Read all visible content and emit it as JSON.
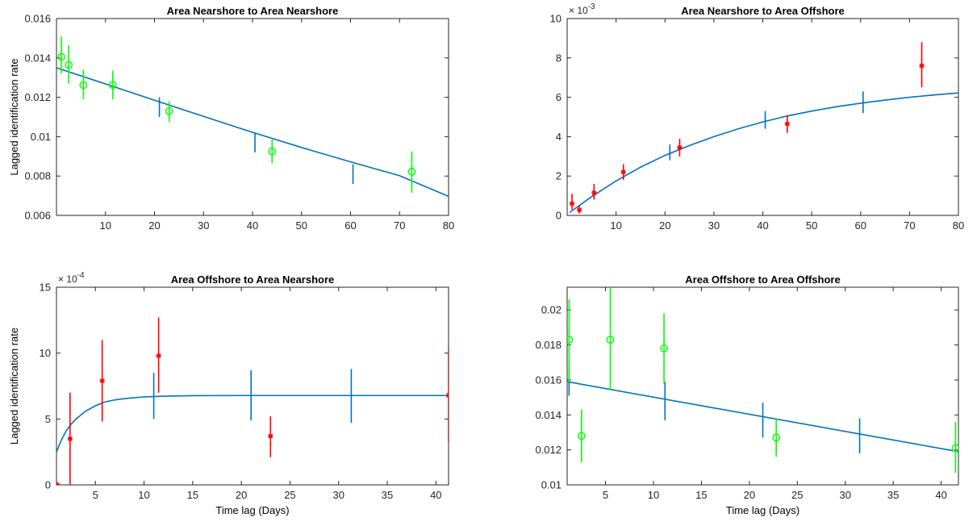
{
  "colors": {
    "fit": "#0072BD",
    "model_error": "#0072BD",
    "green": "#00FF00",
    "red": "#FF0000",
    "axis": "#262626"
  },
  "chart_data": [
    {
      "type": "line",
      "title": "Area Nearshore to Area Nearshore",
      "xlabel": "",
      "ylabel": "Lagged identification rate",
      "xlim": [
        0,
        80
      ],
      "ylim": [
        0.006,
        0.016
      ],
      "grid": false,
      "x_ticks": [
        10,
        20,
        30,
        40,
        50,
        60,
        70,
        80
      ],
      "x_tick_labels": [
        "10",
        "20",
        "30",
        "40",
        "50",
        "60",
        "70",
        "80"
      ],
      "y_ticks": [
        0.006,
        0.008,
        0.01,
        0.012,
        0.014,
        0.016
      ],
      "y_tick_labels": [
        "0.006",
        "0.008",
        "0.01",
        "0.012",
        "0.014",
        "0.016"
      ],
      "y_exponent_label": "",
      "fit_curve": {
        "x": [
          0,
          10,
          20,
          30,
          40,
          50,
          60,
          70,
          80
        ],
        "y": [
          0.0135,
          0.01268,
          0.01185,
          0.01103,
          0.01022,
          0.00945,
          0.00872,
          0.00802,
          0.00697
        ]
      },
      "model_error_bars": [
        {
          "x": 21,
          "low": 0.011,
          "high": 0.012
        },
        {
          "x": 40.5,
          "low": 0.0092,
          "high": 0.0102
        },
        {
          "x": 60.5,
          "low": 0.0076,
          "high": 0.0086
        }
      ],
      "observations": {
        "marker": "circle",
        "color": "#00FF00",
        "points": [
          {
            "x": 1,
            "y": 0.01405,
            "low": 0.0132,
            "high": 0.0151
          },
          {
            "x": 2.5,
            "y": 0.01365,
            "low": 0.0127,
            "high": 0.01465
          },
          {
            "x": 5.5,
            "y": 0.01262,
            "low": 0.0119,
            "high": 0.0134
          },
          {
            "x": 11.5,
            "y": 0.01263,
            "low": 0.0119,
            "high": 0.01335
          },
          {
            "x": 23,
            "y": 0.0113,
            "low": 0.01075,
            "high": 0.0118
          },
          {
            "x": 44,
            "y": 0.00925,
            "low": 0.00865,
            "high": 0.00985
          },
          {
            "x": 72.5,
            "y": 0.00822,
            "low": 0.00715,
            "high": 0.00925
          }
        ]
      }
    },
    {
      "type": "line",
      "title": "Area Nearshore to Area Offshore",
      "xlabel": "",
      "ylabel": "",
      "xlim": [
        0,
        80
      ],
      "ylim": [
        0,
        10
      ],
      "grid": false,
      "x_ticks": [
        10,
        20,
        30,
        40,
        50,
        60,
        70,
        80
      ],
      "x_tick_labels": [
        "10",
        "20",
        "30",
        "40",
        "50",
        "60",
        "70",
        "80"
      ],
      "y_ticks": [
        0,
        2,
        4,
        6,
        8,
        10
      ],
      "y_tick_labels": [
        "0",
        "2",
        "4",
        "6",
        "8",
        "10"
      ],
      "y_exponent_label": "× 10^-3",
      "fit_curve": {
        "x": [
          0.5,
          5,
          10,
          15,
          20,
          25,
          30,
          35,
          40,
          45,
          50,
          55,
          60,
          65,
          70,
          75,
          80
        ],
        "y": [
          0.15,
          0.95,
          1.75,
          2.45,
          3.05,
          3.55,
          4.0,
          4.4,
          4.75,
          5.05,
          5.3,
          5.52,
          5.7,
          5.86,
          6.0,
          6.12,
          6.22
        ]
      },
      "model_error_bars": [
        {
          "x": 21,
          "low": 2.8,
          "high": 3.6
        },
        {
          "x": 40.5,
          "low": 4.4,
          "high": 5.3
        },
        {
          "x": 60.5,
          "low": 5.2,
          "high": 6.3
        }
      ],
      "observations": {
        "marker": "star",
        "color": "#FF0000",
        "points": [
          {
            "x": 1,
            "y": 0.6,
            "low": 0.3,
            "high": 1.1
          },
          {
            "x": 2.5,
            "y": 0.28,
            "low": 0.1,
            "high": 0.5
          },
          {
            "x": 5.5,
            "y": 1.15,
            "low": 0.8,
            "high": 1.6
          },
          {
            "x": 11.5,
            "y": 2.2,
            "low": 1.8,
            "high": 2.6
          },
          {
            "x": 23,
            "y": 3.45,
            "low": 3.0,
            "high": 3.9
          },
          {
            "x": 45,
            "y": 4.65,
            "low": 4.2,
            "high": 5.1
          },
          {
            "x": 72.5,
            "y": 7.6,
            "low": 6.5,
            "high": 8.8
          }
        ]
      }
    },
    {
      "type": "line",
      "title": "Area Offshore to Area Nearshore",
      "xlabel": "Time lag (Days)",
      "ylabel": "Lagged identification rate",
      "xlim": [
        1,
        41.3
      ],
      "ylim": [
        0,
        15
      ],
      "grid": false,
      "x_ticks": [
        5,
        10,
        15,
        20,
        25,
        30,
        35,
        40
      ],
      "x_tick_labels": [
        "5",
        "10",
        "15",
        "20",
        "25",
        "30",
        "35",
        "40"
      ],
      "y_ticks": [
        0,
        5,
        10,
        15
      ],
      "y_tick_labels": [
        "0",
        "5",
        "10",
        "15"
      ],
      "y_exponent_label": "× 10^-4",
      "fit_curve": {
        "x": [
          1,
          1.5,
          2,
          2.5,
          3,
          4,
          5,
          6,
          7,
          8,
          10,
          12,
          15,
          20,
          25,
          30,
          35,
          41.3
        ],
        "y": [
          2.5,
          3.4,
          4.1,
          4.6,
          5.0,
          5.6,
          6.0,
          6.3,
          6.45,
          6.55,
          6.68,
          6.73,
          6.77,
          6.78,
          6.78,
          6.78,
          6.78,
          6.78
        ]
      },
      "model_error_bars": [
        {
          "x": 11,
          "low": 5.0,
          "high": 8.5
        },
        {
          "x": 21,
          "low": 4.9,
          "high": 8.7
        },
        {
          "x": 31.3,
          "low": 4.7,
          "high": 8.8
        }
      ],
      "observations": {
        "marker": "star",
        "color": "#FF0000",
        "points": [
          {
            "x": 1.1,
            "y": 0.0,
            "low": 0.0,
            "high": 0.1
          },
          {
            "x": 2.4,
            "y": 3.5,
            "low": 0.0,
            "high": 7.0
          },
          {
            "x": 5.7,
            "y": 7.9,
            "low": 4.8,
            "high": 11.0
          },
          {
            "x": 11.5,
            "y": 9.8,
            "low": 7.0,
            "high": 12.7
          },
          {
            "x": 23,
            "y": 3.7,
            "low": 2.1,
            "high": 5.2
          },
          {
            "x": 41.3,
            "y": 6.8,
            "low": 3.2,
            "high": 10.4
          }
        ]
      }
    },
    {
      "type": "line",
      "title": "Area Offshore to Area Offshore",
      "xlabel": "Time lag (Days)",
      "ylabel": "",
      "xlim": [
        1,
        41.8
      ],
      "ylim": [
        0.01,
        0.0213
      ],
      "grid": false,
      "x_ticks": [
        5,
        10,
        15,
        20,
        25,
        30,
        35,
        40
      ],
      "x_tick_labels": [
        "5",
        "10",
        "15",
        "20",
        "25",
        "30",
        "35",
        "40"
      ],
      "y_ticks": [
        0.01,
        0.012,
        0.014,
        0.016,
        0.018,
        0.02
      ],
      "y_tick_labels": [
        "0.01",
        "0.012",
        "0.014",
        "0.016",
        "0.018",
        "0.02"
      ],
      "y_exponent_label": "",
      "fit_curve": {
        "x": [
          1,
          41.8
        ],
        "y": [
          0.0159,
          0.0119
        ]
      },
      "model_error_bars": [
        {
          "x": 1.2,
          "low": 0.0151,
          "high": 0.0168
        },
        {
          "x": 11.2,
          "low": 0.0137,
          "high": 0.0159
        },
        {
          "x": 21.4,
          "low": 0.0127,
          "high": 0.0147
        },
        {
          "x": 31.5,
          "low": 0.0118,
          "high": 0.0138
        }
      ],
      "observations": {
        "marker": "circle",
        "color": "#00FF00",
        "points": [
          {
            "x": 1.2,
            "y": 0.0183,
            "low": 0.0159,
            "high": 0.0206
          },
          {
            "x": 2.5,
            "y": 0.0128,
            "low": 0.0113,
            "high": 0.0143
          },
          {
            "x": 5.5,
            "y": 0.0183,
            "low": 0.0154,
            "high": 0.0213
          },
          {
            "x": 11.1,
            "y": 0.0178,
            "low": 0.0158,
            "high": 0.0198
          },
          {
            "x": 22.8,
            "y": 0.0127,
            "low": 0.0116,
            "high": 0.0138
          },
          {
            "x": 41.5,
            "y": 0.0121,
            "low": 0.0107,
            "high": 0.0136
          }
        ]
      }
    }
  ]
}
